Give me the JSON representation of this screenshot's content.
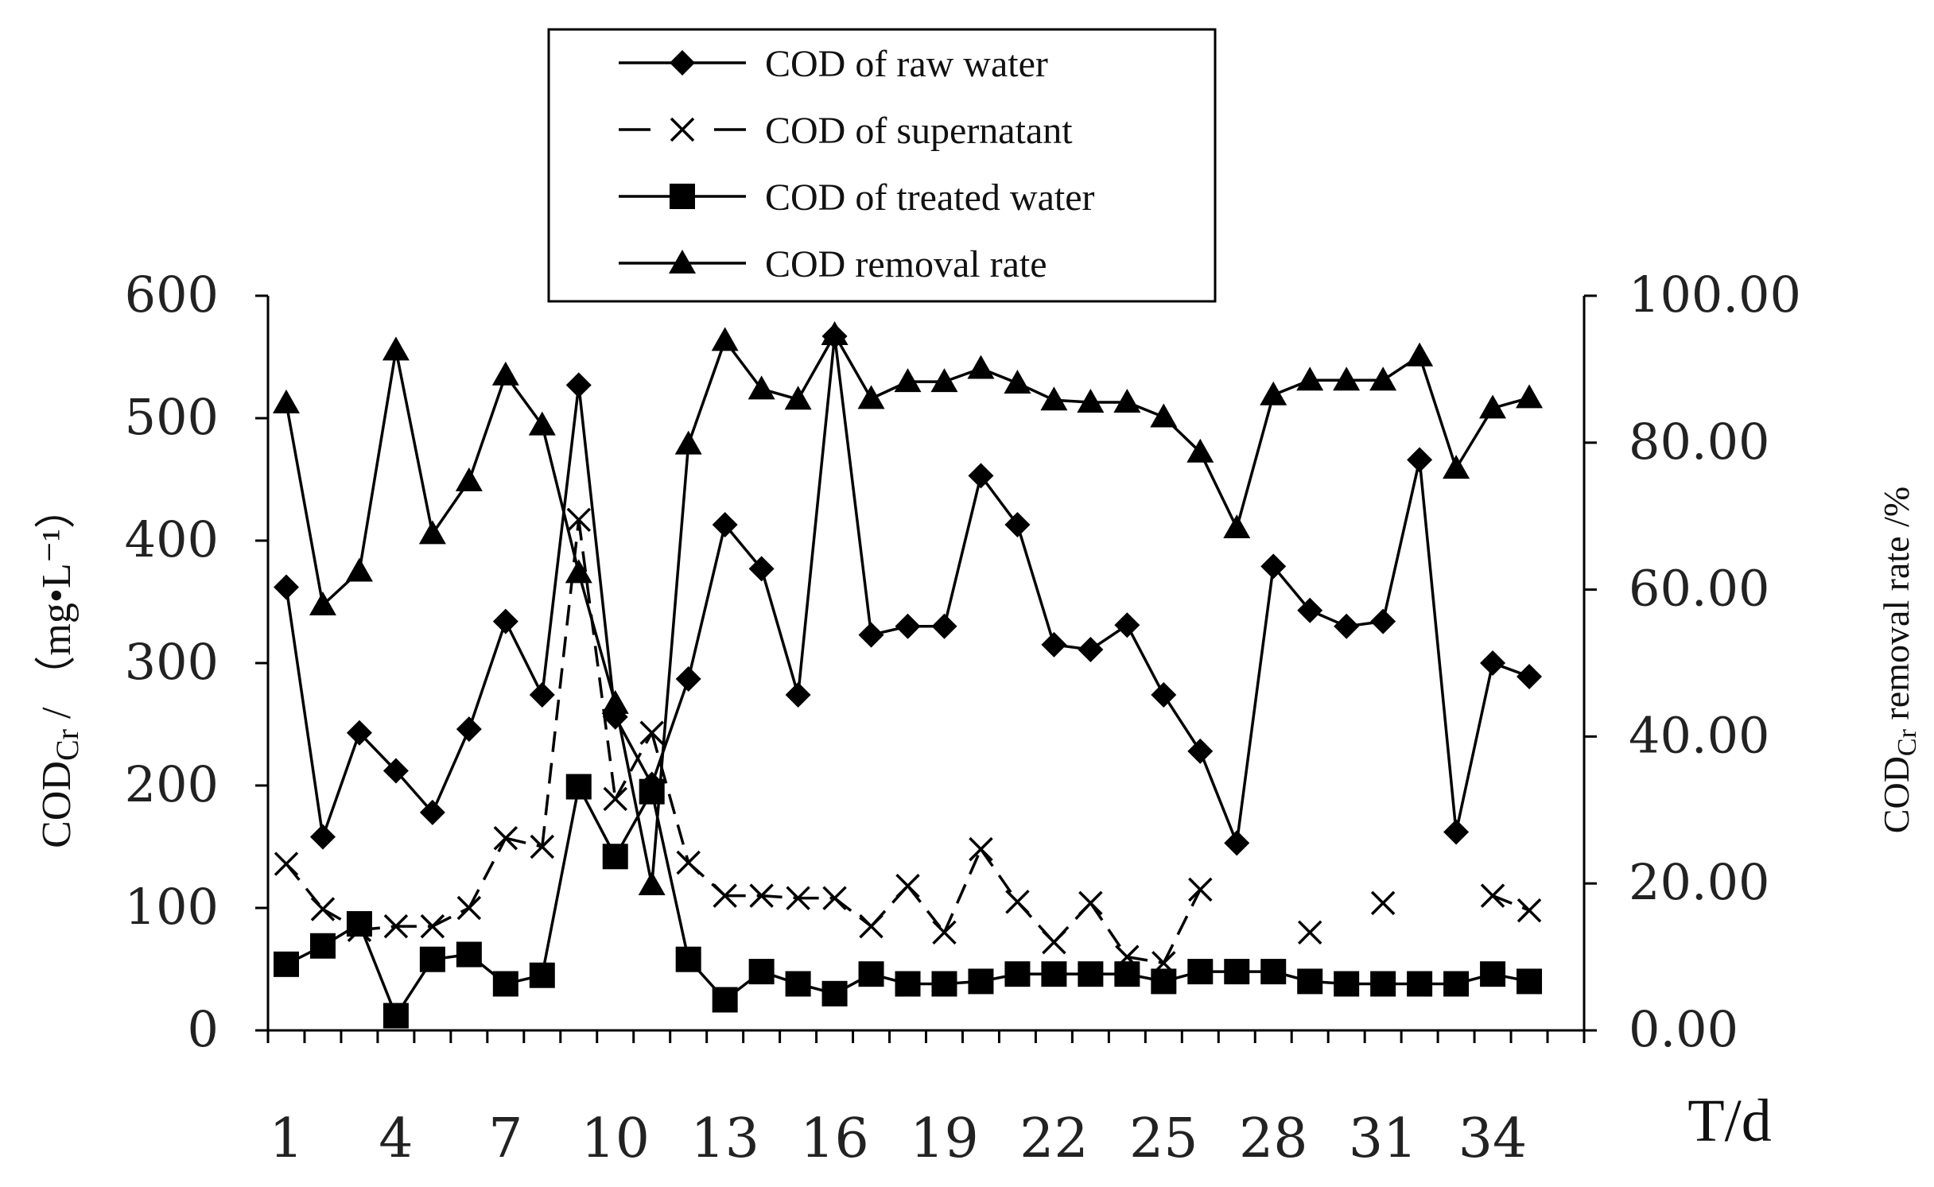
{
  "chart_data": {
    "type": "line",
    "x_label": "T/d",
    "x": [
      1,
      2,
      3,
      4,
      5,
      6,
      7,
      8,
      9,
      10,
      11,
      12,
      13,
      14,
      15,
      16,
      17,
      18,
      19,
      20,
      21,
      22,
      23,
      24,
      25,
      26,
      27,
      28,
      29,
      30,
      31,
      32,
      33,
      34,
      35,
      36
    ],
    "x_ticks": [
      "1",
      "4",
      "7",
      "10",
      "13",
      "16",
      "19",
      "22",
      "25",
      "28",
      "31",
      "34"
    ],
    "y_left": {
      "title_main": "COD",
      "title_sub": "Cr",
      "title_unit": " / （mg•L⁻¹）",
      "range": [
        0,
        600
      ],
      "ticks": [
        "0",
        "100",
        "200",
        "300",
        "400",
        "500",
        "600"
      ]
    },
    "y_right": {
      "title_main": "COD",
      "title_sub": "Cr",
      "title_unit": " removal rate /%",
      "range": [
        0,
        100
      ],
      "ticks": [
        "0.00",
        "20.00",
        "40.00",
        "60.00",
        "80.00",
        "100.00"
      ]
    },
    "series": [
      {
        "name": "COD of raw water",
        "marker": "diamond",
        "axis": "left",
        "values": [
          362,
          158,
          243,
          212,
          178,
          246,
          334,
          274,
          527,
          256,
          201,
          287,
          413,
          377,
          274,
          567,
          323,
          330,
          330,
          453,
          413,
          315,
          311,
          331,
          274,
          228,
          153,
          379,
          343,
          330,
          334,
          466,
          162,
          300,
          289,
          null
        ]
      },
      {
        "name": "COD of supernatant",
        "marker": "x",
        "axis": "left",
        "dashed": true,
        "values": [
          136,
          99,
          82,
          85,
          85,
          100,
          157,
          150,
          417,
          189,
          243,
          137,
          110,
          110,
          108,
          108,
          85,
          118,
          80,
          148,
          105,
          72,
          104,
          60,
          55,
          115,
          null,
          null,
          80,
          null,
          104,
          null,
          null,
          110,
          98,
          null
        ]
      },
      {
        "name": "COD of treated water",
        "marker": "square",
        "axis": "left",
        "values": [
          54,
          69,
          87,
          12,
          58,
          62,
          38,
          45,
          199,
          142,
          195,
          58,
          25,
          48,
          38,
          30,
          46,
          38,
          38,
          40,
          46,
          46,
          46,
          46,
          40,
          48,
          48,
          48,
          40,
          38,
          38,
          38,
          38,
          46,
          40,
          null
        ]
      },
      {
        "name": "COD removal rate",
        "marker": "triangle",
        "axis": "right",
        "values": [
          85.4,
          57.9,
          62.5,
          92.6,
          67.6,
          74.8,
          89.2,
          82.4,
          62.3,
          44.5,
          19.8,
          79.8,
          93.9,
          87.3,
          85.9,
          94.7,
          86.0,
          88.3,
          88.3,
          90.1,
          88.1,
          85.8,
          85.5,
          85.5,
          83.5,
          78.7,
          68.4,
          86.5,
          88.5,
          88.5,
          88.5,
          91.8,
          76.5,
          84.7,
          86.1,
          null
        ]
      }
    ]
  }
}
